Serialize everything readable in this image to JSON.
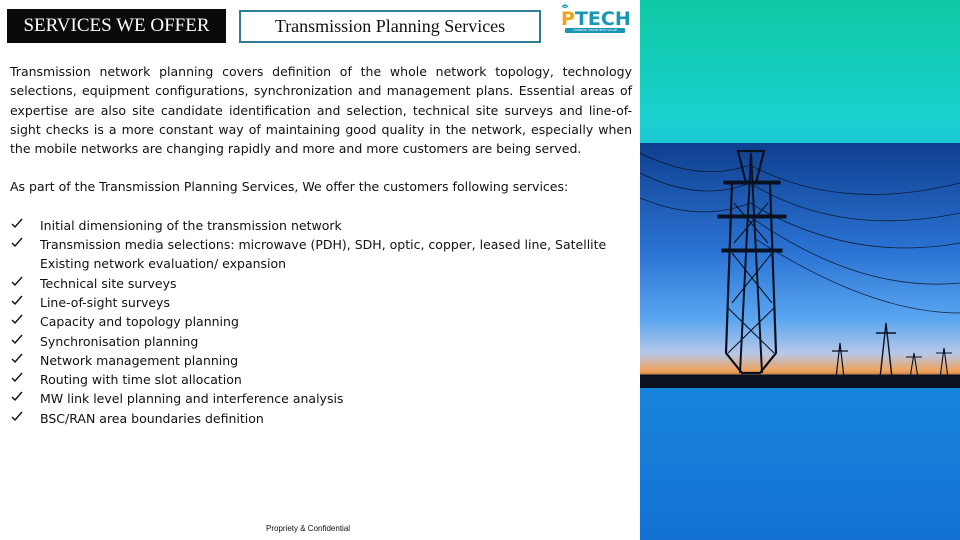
{
  "header": {
    "section_label": "SERVICES WE OFFER",
    "slide_title": "Transmission Planning Services"
  },
  "logo": {
    "letter_p": "P",
    "letters_rest": "TECH",
    "tagline": "TURNING VISION INTO VALUE"
  },
  "body": {
    "paragraph1": "Transmission network planning covers definition of the whole network topology, technology selections, equipment configurations, synchronization and management plans. Essential areas of expertise are also site candidate identification and selection, technical site surveys and line-of-sight checks is a more constant way of maintaining good quality in the network, especially when the mobile networks are changing rapidly and more and more customers are being served.",
    "paragraph2": "As part of the Transmission Planning Services, We offer the customers following services:",
    "services": [
      "Initial dimensioning of the transmission network",
      "Transmission media selections: microwave (PDH), SDH, optic, copper, leased line, Satellite",
      "Technical site surveys",
      "Line-of-sight surveys",
      "Capacity and topology planning",
      "Synchronisation planning",
      "Network management planning",
      "Routing with time slot allocation",
      "MW link level planning and interference analysis",
      "BSC/RAN area boundaries definition"
    ],
    "services_continuation": "Existing network evaluation/ expansion"
  },
  "footer": {
    "confidential": "Propriety & Confidential"
  },
  "icons": {
    "bullet": "check-mark-icon"
  },
  "colors": {
    "header_black": "#0a0a0a",
    "title_border": "#2f7e93",
    "logo_orange": "#f2a317",
    "logo_teal": "#1a96b4",
    "panel_top": "#0fc9a4",
    "panel_bottom": "#1372d3"
  }
}
